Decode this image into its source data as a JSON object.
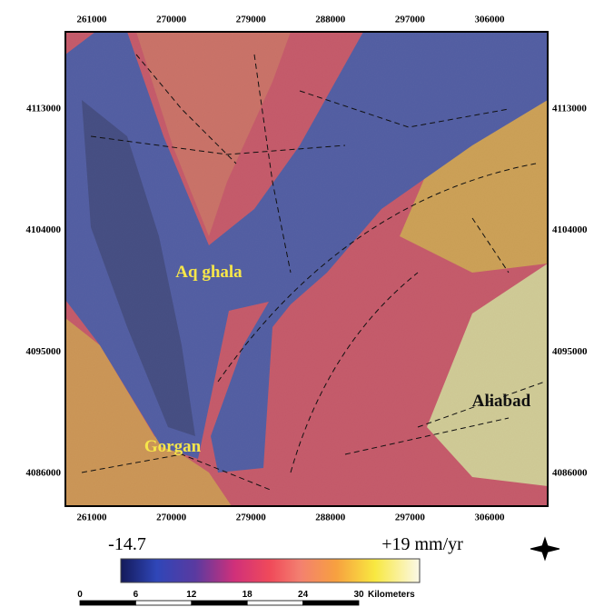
{
  "map": {
    "x_ticks": [
      261000,
      270000,
      279000,
      288000,
      297000,
      306000
    ],
    "y_ticks": [
      4113000,
      4104000,
      4095000,
      4086000
    ],
    "places": [
      "Aq ghala",
      "Gorgan",
      "Aliabad"
    ],
    "legend": {
      "min_label": "-14.7",
      "max_label": "+19 mm/yr"
    },
    "scale": {
      "ticks": [
        0,
        6,
        12,
        18,
        24,
        30
      ],
      "unit": "Kilometers"
    }
  }
}
